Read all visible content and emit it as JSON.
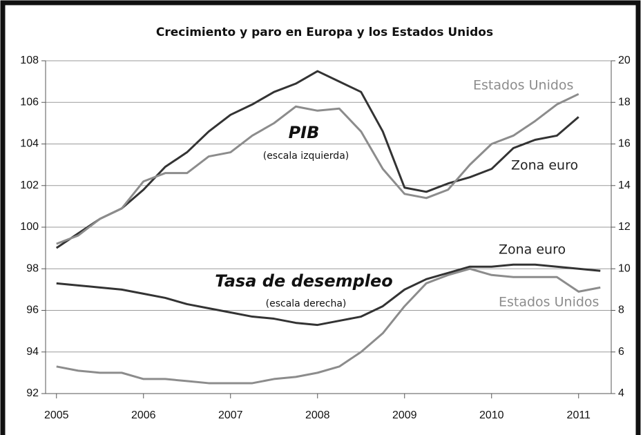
{
  "chart_data": {
    "type": "line",
    "title": "Crecimiento y paro en Europa y los Estados Unidos",
    "x": [
      2005,
      2005.25,
      2005.5,
      2005.75,
      2006,
      2006.25,
      2006.5,
      2006.75,
      2007,
      2007.25,
      2007.5,
      2007.75,
      2008,
      2008.25,
      2008.5,
      2008.75,
      2009,
      2009.25,
      2009.5,
      2009.75,
      2010,
      2010.25,
      2010.5,
      2010.75,
      2011,
      2011.25
    ],
    "xlim": [
      2004.875,
      2011.375
    ],
    "xticks": [
      2005,
      2006,
      2007,
      2008,
      2009,
      2010,
      2011
    ],
    "ylim": [
      92,
      108
    ],
    "yticks": [
      92,
      94,
      96,
      98,
      100,
      102,
      104,
      106,
      108
    ],
    "y2lim": [
      4,
      20
    ],
    "y2ticks": [
      4,
      6,
      8,
      10,
      12,
      14,
      16,
      18,
      20
    ],
    "grid": true,
    "annotations": [
      "PIB",
      "(escala izquierda)",
      "Tasa de desempleo",
      "(escala derecha)"
    ],
    "series": [
      {
        "name": "Zona euro",
        "color": "#333333",
        "values": [
          99.0,
          99.7,
          100.4,
          100.9,
          101.8,
          102.9,
          103.6,
          104.6,
          105.4,
          105.9,
          106.5,
          106.9,
          107.5,
          107.0,
          106.5,
          104.6,
          101.9,
          101.7,
          102.1,
          102.4,
          102.8,
          103.8,
          104.2,
          104.4,
          105.3,
          null
        ]
      },
      {
        "name": "Estados Unidos",
        "color": "#8c8c8c",
        "values": [
          99.2,
          99.6,
          100.4,
          100.9,
          102.2,
          102.6,
          102.6,
          103.4,
          103.6,
          104.4,
          105.0,
          105.8,
          105.6,
          105.7,
          104.6,
          102.8,
          101.6,
          101.4,
          101.8,
          103.0,
          104.0,
          104.4,
          105.1,
          105.9,
          106.4,
          null
        ]
      },
      {
        "name": "Zona euro",
        "color": "#333333",
        "axis": "y2",
        "values": [
          9.3,
          9.2,
          9.1,
          9.0,
          8.8,
          8.6,
          8.3,
          8.1,
          7.9,
          7.7,
          7.6,
          7.4,
          7.3,
          7.5,
          7.7,
          8.2,
          9.0,
          9.5,
          9.8,
          10.1,
          10.1,
          10.2,
          10.2,
          10.1,
          10.0,
          9.9
        ]
      },
      {
        "name": "Estados Unidos",
        "color": "#8c8c8c",
        "axis": "y2",
        "values": [
          5.3,
          5.1,
          5.0,
          5.0,
          4.7,
          4.7,
          4.6,
          4.5,
          4.5,
          4.5,
          4.7,
          4.8,
          5.0,
          5.3,
          6.0,
          6.9,
          8.2,
          9.3,
          9.7,
          10.0,
          9.7,
          9.6,
          9.6,
          9.6,
          8.9,
          9.1
        ]
      }
    ]
  }
}
